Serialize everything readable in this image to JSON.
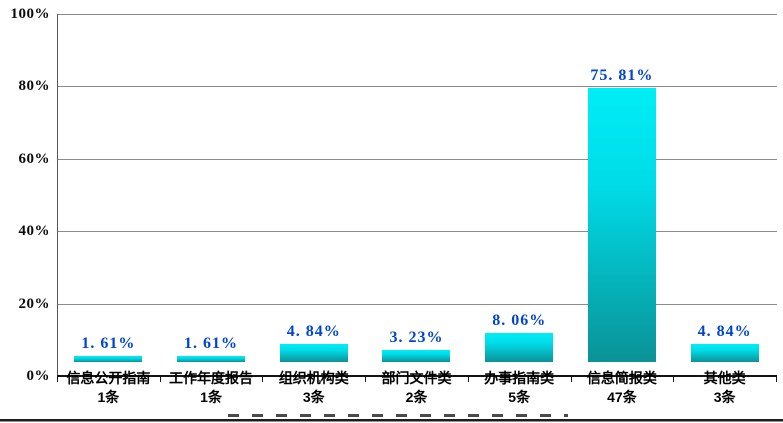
{
  "chart_data": {
    "type": "bar",
    "title": "",
    "xlabel": "",
    "ylabel": "",
    "ylim": [
      0,
      100
    ],
    "grid": true,
    "legend": false,
    "y_ticks": [
      "100%",
      "80%",
      "60%",
      "40%",
      "20%",
      "0%"
    ],
    "categories": [
      "信息公开指南",
      "工作年度报告",
      "组织机构类",
      "部门文件类",
      "办事指南类",
      "信息简报类",
      "其他类"
    ],
    "counts": [
      "1条",
      "1条",
      "3条",
      "2条",
      "5条",
      "47条",
      "3条"
    ],
    "values": [
      1.61,
      1.61,
      4.84,
      3.23,
      8.06,
      75.81,
      4.84
    ],
    "value_labels": [
      "1. 61%",
      "1. 61%",
      "4. 84%",
      "3. 23%",
      "8. 06%",
      "75. 81%",
      "4. 84%"
    ],
    "colors": {
      "bar_top": "#00eef6",
      "bar_mid": "#00dce8",
      "bar_bottom": "#0a9297",
      "value_label": "#0045cf",
      "gridline": "#8c8c8c",
      "axis": "#5a5a5a",
      "baseline": "#141414",
      "category_label": "#000000",
      "background": "#ffffff"
    }
  }
}
